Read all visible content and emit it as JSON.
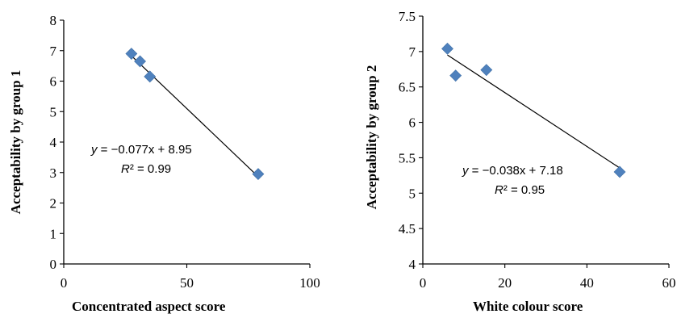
{
  "chart_data": [
    {
      "type": "scatter",
      "xlabel": "Concentrated aspect score",
      "ylabel": "Acceptability by group 1",
      "xlim": [
        0,
        100
      ],
      "ylim": [
        0,
        8
      ],
      "xticks": [
        "0",
        "50",
        "100"
      ],
      "yticks": [
        "0",
        "1",
        "2",
        "3",
        "4",
        "5",
        "6",
        "7",
        "8"
      ],
      "points": [
        {
          "x": 27.5,
          "y": 6.9
        },
        {
          "x": 31.0,
          "y": 6.65
        },
        {
          "x": 35.0,
          "y": 6.15
        },
        {
          "x": 79.0,
          "y": 2.95
        }
      ],
      "trendline": {
        "slope": -0.077,
        "intercept": 8.95,
        "x_range": [
          28,
          79
        ]
      },
      "equation": "y = −0.077x + 8.95",
      "r2": "R² = 0.99",
      "marker_color": "#4f81bd",
      "grid": false
    },
    {
      "type": "scatter",
      "xlabel": "White colour score",
      "ylabel": "Acceptability by group 2",
      "xlim": [
        0,
        60
      ],
      "ylim": [
        4,
        7.5
      ],
      "xticks": [
        "0",
        "20",
        "40",
        "60"
      ],
      "yticks": [
        "4",
        "4.5",
        "5",
        "5.5",
        "6",
        "6.5",
        "7",
        "7.5"
      ],
      "points": [
        {
          "x": 6.0,
          "y": 7.04
        },
        {
          "x": 8.0,
          "y": 6.66
        },
        {
          "x": 15.5,
          "y": 6.74
        },
        {
          "x": 48.0,
          "y": 5.3
        }
      ],
      "trendline": {
        "slope": -0.038,
        "intercept": 7.18,
        "x_range": [
          6,
          48
        ]
      },
      "equation": "y = −0.038x + 7.18",
      "r2": "R² = 0.95",
      "marker_color": "#4f81bd",
      "grid": false
    }
  ]
}
